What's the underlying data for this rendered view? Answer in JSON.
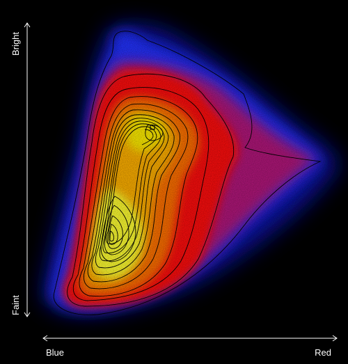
{
  "chart_data": {
    "type": "heatmap",
    "title": "",
    "xlabel": "",
    "ylabel": "",
    "x_axis": {
      "start_label": "Blue",
      "end_label": "Red"
    },
    "y_axis": {
      "start_label": "Faint",
      "end_label": "Bright"
    },
    "colormap": [
      "#000000",
      "#1a2cff",
      "#ff0000",
      "#ff8c00",
      "#ffff00"
    ],
    "contours": true,
    "ticks": false,
    "grid": false,
    "legend": "none"
  }
}
